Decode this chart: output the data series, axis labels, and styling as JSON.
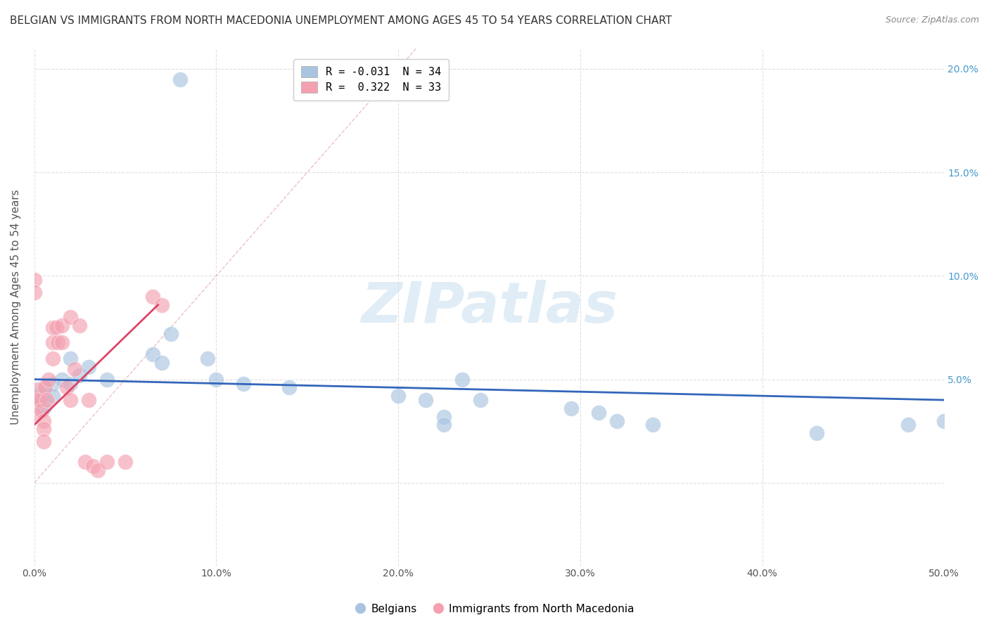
{
  "title": "BELGIAN VS IMMIGRANTS FROM NORTH MACEDONIA UNEMPLOYMENT AMONG AGES 45 TO 54 YEARS CORRELATION CHART",
  "source": "Source: ZipAtlas.com",
  "ylabel": "Unemployment Among Ages 45 to 54 years",
  "xlim": [
    0,
    0.5
  ],
  "ylim": [
    -0.04,
    0.21
  ],
  "plot_ylim": [
    -0.04,
    0.21
  ],
  "xticks": [
    0.0,
    0.1,
    0.2,
    0.3,
    0.4,
    0.5
  ],
  "yticks": [
    0.0,
    0.05,
    0.1,
    0.15,
    0.2
  ],
  "xtick_labels": [
    "0.0%",
    "10.0%",
    "20.0%",
    "30.0%",
    "40.0%",
    "50.0%"
  ],
  "right_ytick_labels": [
    "",
    "5.0%",
    "10.0%",
    "15.0%",
    "20.0%"
  ],
  "legend_entries": [
    {
      "label": "R = -0.031  N = 34",
      "color": "#a8c4e0"
    },
    {
      "label": "R =  0.322  N = 33",
      "color": "#f4a0b0"
    }
  ],
  "legend_bottom": [
    {
      "label": "Belgians",
      "color": "#a8c4e0"
    },
    {
      "label": "Immigrants from North Macedonia",
      "color": "#f4a0b0"
    }
  ],
  "blue_scatter_x": [
    0.08,
    0.0,
    0.005,
    0.005,
    0.005,
    0.005,
    0.01,
    0.01,
    0.015,
    0.02,
    0.02,
    0.025,
    0.03,
    0.04,
    0.065,
    0.07,
    0.075,
    0.095,
    0.1,
    0.115,
    0.14,
    0.2,
    0.215,
    0.225,
    0.225,
    0.235,
    0.245,
    0.295,
    0.31,
    0.32,
    0.34,
    0.43,
    0.48,
    0.5
  ],
  "blue_scatter_y": [
    0.195,
    0.042,
    0.046,
    0.043,
    0.04,
    0.036,
    0.048,
    0.042,
    0.05,
    0.06,
    0.048,
    0.052,
    0.056,
    0.05,
    0.062,
    0.058,
    0.072,
    0.06,
    0.05,
    0.048,
    0.046,
    0.042,
    0.04,
    0.032,
    0.028,
    0.05,
    0.04,
    0.036,
    0.034,
    0.03,
    0.028,
    0.024,
    0.028,
    0.03
  ],
  "pink_scatter_x": [
    0.0,
    0.0,
    0.0,
    0.0,
    0.002,
    0.003,
    0.004,
    0.005,
    0.005,
    0.005,
    0.006,
    0.007,
    0.008,
    0.01,
    0.01,
    0.01,
    0.012,
    0.013,
    0.015,
    0.015,
    0.018,
    0.02,
    0.02,
    0.022,
    0.025,
    0.028,
    0.03,
    0.032,
    0.035,
    0.04,
    0.05,
    0.065,
    0.07
  ],
  "pink_scatter_y": [
    0.098,
    0.092,
    0.04,
    0.033,
    0.045,
    0.04,
    0.035,
    0.03,
    0.026,
    0.02,
    0.046,
    0.04,
    0.05,
    0.075,
    0.068,
    0.06,
    0.075,
    0.068,
    0.076,
    0.068,
    0.046,
    0.08,
    0.04,
    0.055,
    0.076,
    0.01,
    0.04,
    0.008,
    0.006,
    0.01,
    0.01,
    0.09,
    0.086
  ],
  "blue_trend_x": [
    0.0,
    0.5
  ],
  "blue_trend_y": [
    0.05,
    0.04
  ],
  "pink_trend_x": [
    0.0,
    0.068
  ],
  "pink_trend_y": [
    0.028,
    0.086
  ],
  "ref_line_x": [
    0.0,
    0.21
  ],
  "ref_line_y": [
    0.0,
    0.21
  ],
  "background_color": "#ffffff",
  "grid_color": "#dddddd",
  "blue_color": "#a8c4e0",
  "pink_color": "#f4a0b0",
  "blue_line_color": "#3366bb",
  "pink_line_color": "#dd4466",
  "ref_line_color": "#ccbbbb",
  "title_fontsize": 11,
  "axis_label_fontsize": 11,
  "tick_fontsize": 10,
  "source_fontsize": 9
}
